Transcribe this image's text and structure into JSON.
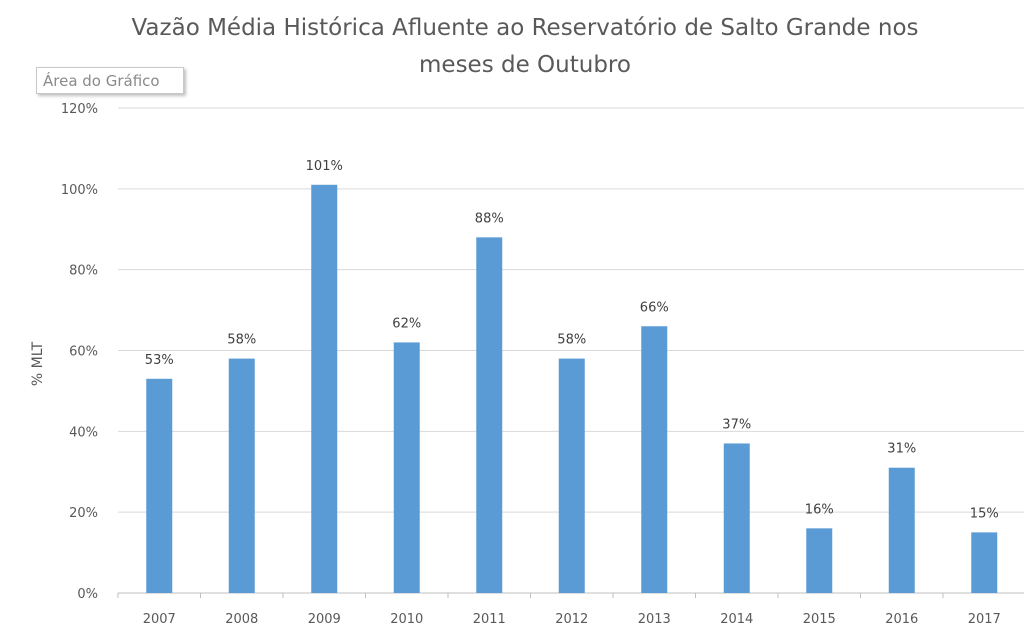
{
  "chart_data": {
    "type": "bar",
    "title_line1": "Vazão Média Histórica Afluente ao Reservatório de Salto Grande nos",
    "title_line2": "meses de Outubro",
    "xlabel": "",
    "ylabel": "% MLT",
    "categories": [
      "2007",
      "2008",
      "2009",
      "2010",
      "2011",
      "2012",
      "2013",
      "2014",
      "2015",
      "2016",
      "2017"
    ],
    "values": [
      53,
      58,
      101,
      62,
      88,
      58,
      66,
      37,
      16,
      31,
      15
    ],
    "data_labels": [
      "53%",
      "58%",
      "101%",
      "62%",
      "88%",
      "58%",
      "66%",
      "37%",
      "16%",
      "31%",
      "15%"
    ],
    "ylim": [
      0,
      120
    ],
    "yticks": [
      0,
      20,
      40,
      60,
      80,
      100,
      120
    ],
    "ytick_labels": [
      "0%",
      "20%",
      "40%",
      "60%",
      "80%",
      "100%",
      "120%"
    ],
    "grid": true,
    "bar_color": "#5b9bd5"
  },
  "tooltip": "Área do Gráfico"
}
